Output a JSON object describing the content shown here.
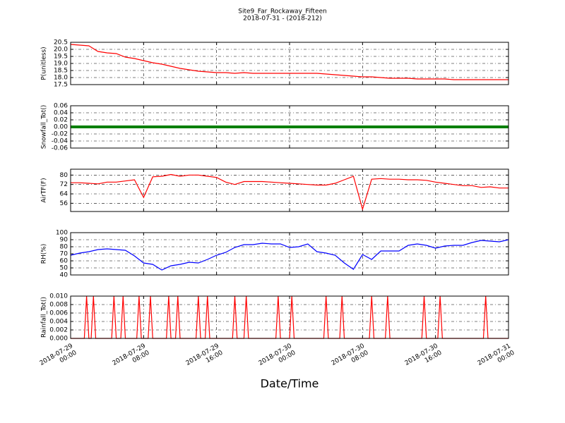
{
  "chart_data": [
    {
      "type": "line",
      "title": "Site9_Far_Rockaway_Fifteen",
      "subtitle": "2018-07-31 - (2018-212)",
      "ylabel": "P(unitless)",
      "color": "#ff0000",
      "grid": true,
      "ylim": [
        17.5,
        20.5
      ],
      "yticks": [
        17.5,
        {
          "value": 18,
          "label": "18.0"
        },
        18.5,
        {
          "value": 19,
          "label": "19.0"
        },
        19.5,
        {
          "value": 20,
          "label": "20.0"
        },
        20.5
      ],
      "x": [
        "2018-07-29 00:00",
        "2018-07-29 01:00",
        "2018-07-29 02:00",
        "2018-07-29 03:00",
        "2018-07-29 04:00",
        "2018-07-29 05:00",
        "2018-07-29 06:00",
        "2018-07-29 07:00",
        "2018-07-29 08:00",
        "2018-07-29 09:00",
        "2018-07-29 10:00",
        "2018-07-29 11:00",
        "2018-07-29 12:00",
        "2018-07-29 13:00",
        "2018-07-29 14:00",
        "2018-07-29 15:00",
        "2018-07-29 16:00",
        "2018-07-29 17:00",
        "2018-07-29 18:00",
        "2018-07-29 19:00",
        "2018-07-29 20:00",
        "2018-07-29 21:00",
        "2018-07-29 22:00",
        "2018-07-29 23:00",
        "2018-07-30 00:00",
        "2018-07-30 01:00",
        "2018-07-30 02:00",
        "2018-07-30 03:00",
        "2018-07-30 04:00",
        "2018-07-30 05:00",
        "2018-07-30 06:00",
        "2018-07-30 07:00",
        "2018-07-30 08:00",
        "2018-07-30 09:00",
        "2018-07-30 10:00",
        "2018-07-30 11:00",
        "2018-07-30 12:00",
        "2018-07-30 13:00",
        "2018-07-30 14:00",
        "2018-07-30 15:00",
        "2018-07-30 16:00",
        "2018-07-30 17:00",
        "2018-07-30 18:00",
        "2018-07-30 19:00",
        "2018-07-30 20:00",
        "2018-07-30 21:00",
        "2018-07-30 22:00",
        "2018-07-30 23:00",
        "2018-07-31 00:00"
      ],
      "values": [
        20.35,
        20.3,
        20.25,
        19.85,
        19.75,
        19.7,
        19.45,
        19.35,
        19.2,
        19.05,
        18.95,
        18.8,
        18.65,
        18.55,
        18.45,
        18.4,
        18.35,
        18.35,
        18.3,
        18.35,
        18.3,
        18.3,
        18.3,
        18.3,
        18.3,
        18.3,
        18.3,
        18.3,
        18.25,
        18.2,
        18.15,
        18.1,
        18.05,
        18.05,
        18.0,
        17.95,
        17.95,
        17.95,
        17.9,
        17.9,
        17.9,
        17.9,
        17.85,
        17.85,
        17.85,
        17.85,
        17.85,
        17.85,
        17.85
      ]
    },
    {
      "type": "line",
      "ylabel": "Snowfall_Tot()",
      "color": "#008000",
      "grid": true,
      "ylim": [
        -0.06,
        0.06
      ],
      "yticks": [
        -0.06,
        -0.04,
        -0.02,
        {
          "value": 0,
          "label": "0.00"
        },
        0.02,
        0.04,
        0.06
      ],
      "x": [
        "2018-07-29 00:00",
        "2018-07-29 01:00",
        "2018-07-29 02:00",
        "2018-07-29 03:00",
        "2018-07-29 04:00",
        "2018-07-29 05:00",
        "2018-07-29 06:00",
        "2018-07-29 07:00",
        "2018-07-29 08:00",
        "2018-07-29 09:00",
        "2018-07-29 10:00",
        "2018-07-29 11:00",
        "2018-07-29 12:00",
        "2018-07-29 13:00",
        "2018-07-29 14:00",
        "2018-07-29 15:00",
        "2018-07-29 16:00",
        "2018-07-29 17:00",
        "2018-07-29 18:00",
        "2018-07-29 19:00",
        "2018-07-29 20:00",
        "2018-07-29 21:00",
        "2018-07-29 22:00",
        "2018-07-29 23:00",
        "2018-07-30 00:00",
        "2018-07-30 01:00",
        "2018-07-30 02:00",
        "2018-07-30 03:00",
        "2018-07-30 04:00",
        "2018-07-30 05:00",
        "2018-07-30 06:00",
        "2018-07-30 07:00",
        "2018-07-30 08:00",
        "2018-07-30 09:00",
        "2018-07-30 10:00",
        "2018-07-30 11:00",
        "2018-07-30 12:00",
        "2018-07-30 13:00",
        "2018-07-30 14:00",
        "2018-07-30 15:00",
        "2018-07-30 16:00",
        "2018-07-30 17:00",
        "2018-07-30 18:00",
        "2018-07-30 19:00",
        "2018-07-30 20:00",
        "2018-07-30 21:00",
        "2018-07-30 22:00",
        "2018-07-30 23:00",
        "2018-07-31 00:00"
      ],
      "values": [
        0,
        0,
        0,
        0,
        0,
        0,
        0,
        0,
        0,
        0,
        0,
        0,
        0,
        0,
        0,
        0,
        0,
        0,
        0,
        0,
        0,
        0,
        0,
        0,
        0,
        0,
        0,
        0,
        0,
        0,
        0,
        0,
        0,
        0,
        0,
        0,
        0,
        0,
        0,
        0,
        0,
        0,
        0,
        0,
        0,
        0,
        0,
        0,
        0
      ]
    },
    {
      "type": "line",
      "ylabel": "AirTF(F)",
      "color": "#ff0000",
      "grid": true,
      "ylim": [
        49,
        85
      ],
      "yticks": [
        56,
        64,
        72,
        80
      ],
      "x": [
        "2018-07-29 00:00",
        "2018-07-29 01:00",
        "2018-07-29 02:00",
        "2018-07-29 03:00",
        "2018-07-29 04:00",
        "2018-07-29 05:00",
        "2018-07-29 06:00",
        "2018-07-29 07:00",
        "2018-07-29 08:00",
        "2018-07-29 09:00",
        "2018-07-29 10:00",
        "2018-07-29 11:00",
        "2018-07-29 12:00",
        "2018-07-29 13:00",
        "2018-07-29 14:00",
        "2018-07-29 15:00",
        "2018-07-29 16:00",
        "2018-07-29 17:00",
        "2018-07-29 18:00",
        "2018-07-29 19:00",
        "2018-07-29 20:00",
        "2018-07-29 21:00",
        "2018-07-29 22:00",
        "2018-07-29 23:00",
        "2018-07-30 00:00",
        "2018-07-30 01:00",
        "2018-07-30 02:00",
        "2018-07-30 03:00",
        "2018-07-30 04:00",
        "2018-07-30 05:00",
        "2018-07-30 06:00",
        "2018-07-30 07:00",
        "2018-07-30 08:00",
        "2018-07-30 09:00",
        "2018-07-30 10:00",
        "2018-07-30 11:00",
        "2018-07-30 12:00",
        "2018-07-30 13:00",
        "2018-07-30 14:00",
        "2018-07-30 15:00",
        "2018-07-30 16:00",
        "2018-07-30 17:00",
        "2018-07-30 18:00",
        "2018-07-30 19:00",
        "2018-07-30 20:00",
        "2018-07-30 21:00",
        "2018-07-30 22:00",
        "2018-07-30 23:00",
        "2018-07-31 00:00"
      ],
      "values": [
        73.5,
        73.5,
        73,
        72.5,
        74,
        74,
        75,
        76,
        61,
        78.5,
        79,
        80.5,
        79,
        80,
        80,
        79,
        78,
        74,
        72,
        74.5,
        74.5,
        74.5,
        74,
        73.5,
        73,
        72.5,
        72,
        71.5,
        71.5,
        73,
        76,
        79,
        51,
        76.5,
        77,
        76.5,
        76.5,
        76,
        76,
        75.5,
        74,
        73,
        72,
        71,
        71,
        69.5,
        70,
        69,
        69
      ]
    },
    {
      "type": "line",
      "ylabel": "RH(%)",
      "color": "#0000ff",
      "grid": true,
      "ylim": [
        40,
        100
      ],
      "yticks": [
        40,
        50,
        60,
        70,
        80,
        90,
        100
      ],
      "x": [
        "2018-07-29 00:00",
        "2018-07-29 01:00",
        "2018-07-29 02:00",
        "2018-07-29 03:00",
        "2018-07-29 04:00",
        "2018-07-29 05:00",
        "2018-07-29 06:00",
        "2018-07-29 07:00",
        "2018-07-29 08:00",
        "2018-07-29 09:00",
        "2018-07-29 10:00",
        "2018-07-29 11:00",
        "2018-07-29 12:00",
        "2018-07-29 13:00",
        "2018-07-29 14:00",
        "2018-07-29 15:00",
        "2018-07-29 16:00",
        "2018-07-29 17:00",
        "2018-07-29 18:00",
        "2018-07-29 19:00",
        "2018-07-29 20:00",
        "2018-07-29 21:00",
        "2018-07-29 22:00",
        "2018-07-29 23:00",
        "2018-07-30 00:00",
        "2018-07-30 01:00",
        "2018-07-30 02:00",
        "2018-07-30 03:00",
        "2018-07-30 04:00",
        "2018-07-30 05:00",
        "2018-07-30 06:00",
        "2018-07-30 07:00",
        "2018-07-30 08:00",
        "2018-07-30 09:00",
        "2018-07-30 10:00",
        "2018-07-30 11:00",
        "2018-07-30 12:00",
        "2018-07-30 13:00",
        "2018-07-30 14:00",
        "2018-07-30 15:00",
        "2018-07-30 16:00",
        "2018-07-30 17:00",
        "2018-07-30 18:00",
        "2018-07-30 19:00",
        "2018-07-30 20:00",
        "2018-07-30 21:00",
        "2018-07-30 22:00",
        "2018-07-30 23:00",
        "2018-07-31 00:00"
      ],
      "values": [
        68,
        71,
        73,
        76,
        77,
        76,
        75,
        67,
        57,
        55,
        47,
        53,
        55,
        58,
        57,
        62,
        68,
        72,
        79,
        83,
        83,
        85,
        84,
        84,
        79,
        80,
        84,
        73,
        71,
        68,
        57,
        48,
        69,
        62,
        74,
        74,
        74,
        82,
        84,
        82,
        78,
        81,
        82,
        82,
        86,
        89,
        88,
        87,
        90
      ]
    },
    {
      "type": "line",
      "ylabel": "Rainfall_Tot()",
      "xlabel": "Date/Time",
      "color": "#ff0000",
      "grid": true,
      "ylim": [
        0,
        0.01
      ],
      "yticks": [
        {
          "value": 0,
          "label": "0.000"
        },
        0.002,
        0.004,
        0.006,
        0.008,
        {
          "value": 0.01,
          "label": "0.010"
        }
      ],
      "xlim": [
        "2018-07-29 00:00",
        "2018-07-31 00:00"
      ],
      "xticks": [
        "2018-07-29 00:00",
        "2018-07-29 08:00",
        "2018-07-29 16:00",
        "2018-07-30 00:00",
        "2018-07-30 08:00",
        "2018-07-30 16:00",
        "2018-07-31 00:00"
      ],
      "x": [
        "2018-07-29 00:00",
        "2018-07-29 01:30",
        "2018-07-29 01:45",
        "2018-07-29 02:00",
        "2018-07-29 02:15",
        "2018-07-29 02:30",
        "2018-07-29 02:45",
        "2018-07-29 04:30",
        "2018-07-29 04:45",
        "2018-07-29 05:00",
        "2018-07-29 05:30",
        "2018-07-29 05:45",
        "2018-07-29 06:00",
        "2018-07-29 07:15",
        "2018-07-29 07:30",
        "2018-07-29 07:45",
        "2018-07-29 08:30",
        "2018-07-29 08:45",
        "2018-07-29 09:00",
        "2018-07-29 10:30",
        "2018-07-29 10:45",
        "2018-07-29 11:00",
        "2018-07-29 11:30",
        "2018-07-29 11:45",
        "2018-07-29 12:00",
        "2018-07-29 13:45",
        "2018-07-29 14:00",
        "2018-07-29 14:15",
        "2018-07-29 14:45",
        "2018-07-29 15:00",
        "2018-07-29 15:15",
        "2018-07-29 17:45",
        "2018-07-29 18:00",
        "2018-07-29 18:15",
        "2018-07-29 19:00",
        "2018-07-29 19:15",
        "2018-07-29 19:30",
        "2018-07-29 22:30",
        "2018-07-29 22:45",
        "2018-07-29 23:00",
        "2018-07-30 00:00",
        "2018-07-30 00:15",
        "2018-07-30 00:30",
        "2018-07-30 03:45",
        "2018-07-30 04:00",
        "2018-07-30 04:15",
        "2018-07-30 05:30",
        "2018-07-30 05:45",
        "2018-07-30 06:00",
        "2018-07-30 08:45",
        "2018-07-30 09:00",
        "2018-07-30 09:15",
        "2018-07-30 10:30",
        "2018-07-30 10:45",
        "2018-07-30 11:00",
        "2018-07-30 14:30",
        "2018-07-30 14:45",
        "2018-07-30 15:00",
        "2018-07-30 16:15",
        "2018-07-30 16:30",
        "2018-07-30 16:45",
        "2018-07-30 21:15",
        "2018-07-30 21:30",
        "2018-07-30 21:45",
        "2018-07-31 00:00"
      ],
      "values": [
        0,
        0,
        0.01,
        0,
        0,
        0.01,
        0,
        0,
        0.01,
        0,
        0,
        0.01,
        0,
        0,
        0.01,
        0,
        0,
        0.01,
        0,
        0,
        0.01,
        0,
        0,
        0.01,
        0,
        0,
        0.01,
        0,
        0,
        0.01,
        0,
        0,
        0.01,
        0,
        0,
        0.01,
        0,
        0,
        0.01,
        0,
        0,
        0.01,
        0,
        0,
        0.01,
        0,
        0,
        0.01,
        0,
        0,
        0.01,
        0,
        0,
        0.01,
        0,
        0,
        0.01,
        0,
        0,
        0.01,
        0,
        0,
        0.01,
        0,
        0
      ]
    }
  ]
}
